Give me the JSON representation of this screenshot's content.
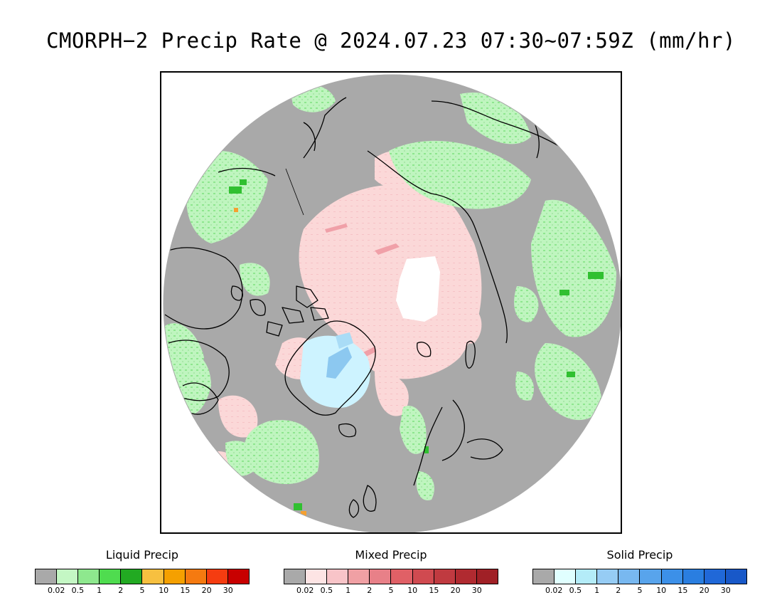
{
  "title": "CMORPH−2 Precip Rate @ 2024.07.23 07:30~07:59Z (mm/hr)",
  "map": {
    "projection": "north polar stereographic",
    "colors": {
      "no_precip": "#a9a9a9",
      "missing": "#ffffff",
      "coastline": "#000000",
      "liquid_light": "#bff5bf",
      "liquid_mid": "#8ee68e",
      "liquid_heavy": "#30c030",
      "liquid_peak": "#f5a030",
      "mixed": "#fbd8d8",
      "mixed_heavy": "#f0a0a8",
      "solid_light": "#cdf3ff",
      "solid_mid": "#8cc8f0"
    }
  },
  "legends": [
    {
      "title": "Liquid Precip",
      "ticks": [
        "0.02",
        "0.5",
        "1",
        "2",
        "5",
        "10",
        "15",
        "20",
        "30"
      ],
      "colors": [
        "#a9a9a9",
        "#c4f7c4",
        "#8ee88e",
        "#4fdc4f",
        "#22aa22",
        "#f7c040",
        "#f5a000",
        "#f57a10",
        "#f53c10",
        "#c80000"
      ]
    },
    {
      "title": "Mixed Precip",
      "ticks": [
        "0.02",
        "0.5",
        "1",
        "2",
        "5",
        "10",
        "15",
        "20",
        "30"
      ],
      "colors": [
        "#a9a9a9",
        "#fde4e4",
        "#f8c4c8",
        "#f0a0a4",
        "#e88088",
        "#e06066",
        "#d04a50",
        "#c03a40",
        "#b02a30",
        "#a02026"
      ]
    },
    {
      "title": "Solid Precip",
      "ticks": [
        "0.02",
        "0.5",
        "1",
        "2",
        "5",
        "10",
        "15",
        "20",
        "30"
      ],
      "colors": [
        "#a9a9a9",
        "#e0ffff",
        "#b4ecf8",
        "#96ccf4",
        "#78b8f0",
        "#58a4ec",
        "#3c90e8",
        "#2a7ee0",
        "#2068d8",
        "#1858c8"
      ]
    }
  ]
}
